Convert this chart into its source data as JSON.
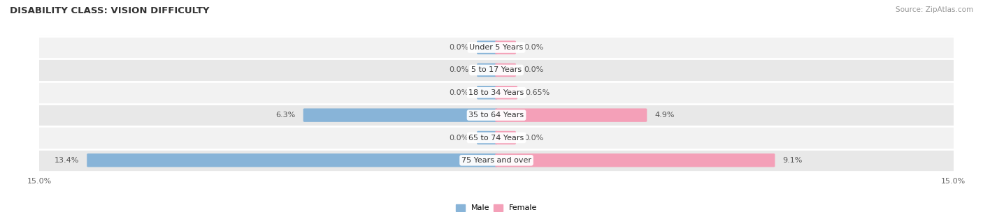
{
  "title": "DISABILITY CLASS: VISION DIFFICULTY",
  "source": "Source: ZipAtlas.com",
  "categories": [
    "Under 5 Years",
    "5 to 17 Years",
    "18 to 34 Years",
    "35 to 64 Years",
    "65 to 74 Years",
    "75 Years and over"
  ],
  "male_values": [
    0.0,
    0.0,
    0.0,
    6.3,
    0.0,
    13.4
  ],
  "female_values": [
    0.0,
    0.0,
    0.65,
    4.9,
    0.0,
    9.1
  ],
  "male_color": "#88b4d8",
  "female_color": "#f4a0b8",
  "row_bg_light": "#f2f2f2",
  "row_bg_dark": "#e8e8e8",
  "stub_val": 0.6,
  "xlim": 15.0,
  "bar_height": 0.52,
  "title_fontsize": 9.5,
  "label_fontsize": 8.0,
  "value_fontsize": 8.0,
  "tick_fontsize": 8.0,
  "source_fontsize": 7.5
}
